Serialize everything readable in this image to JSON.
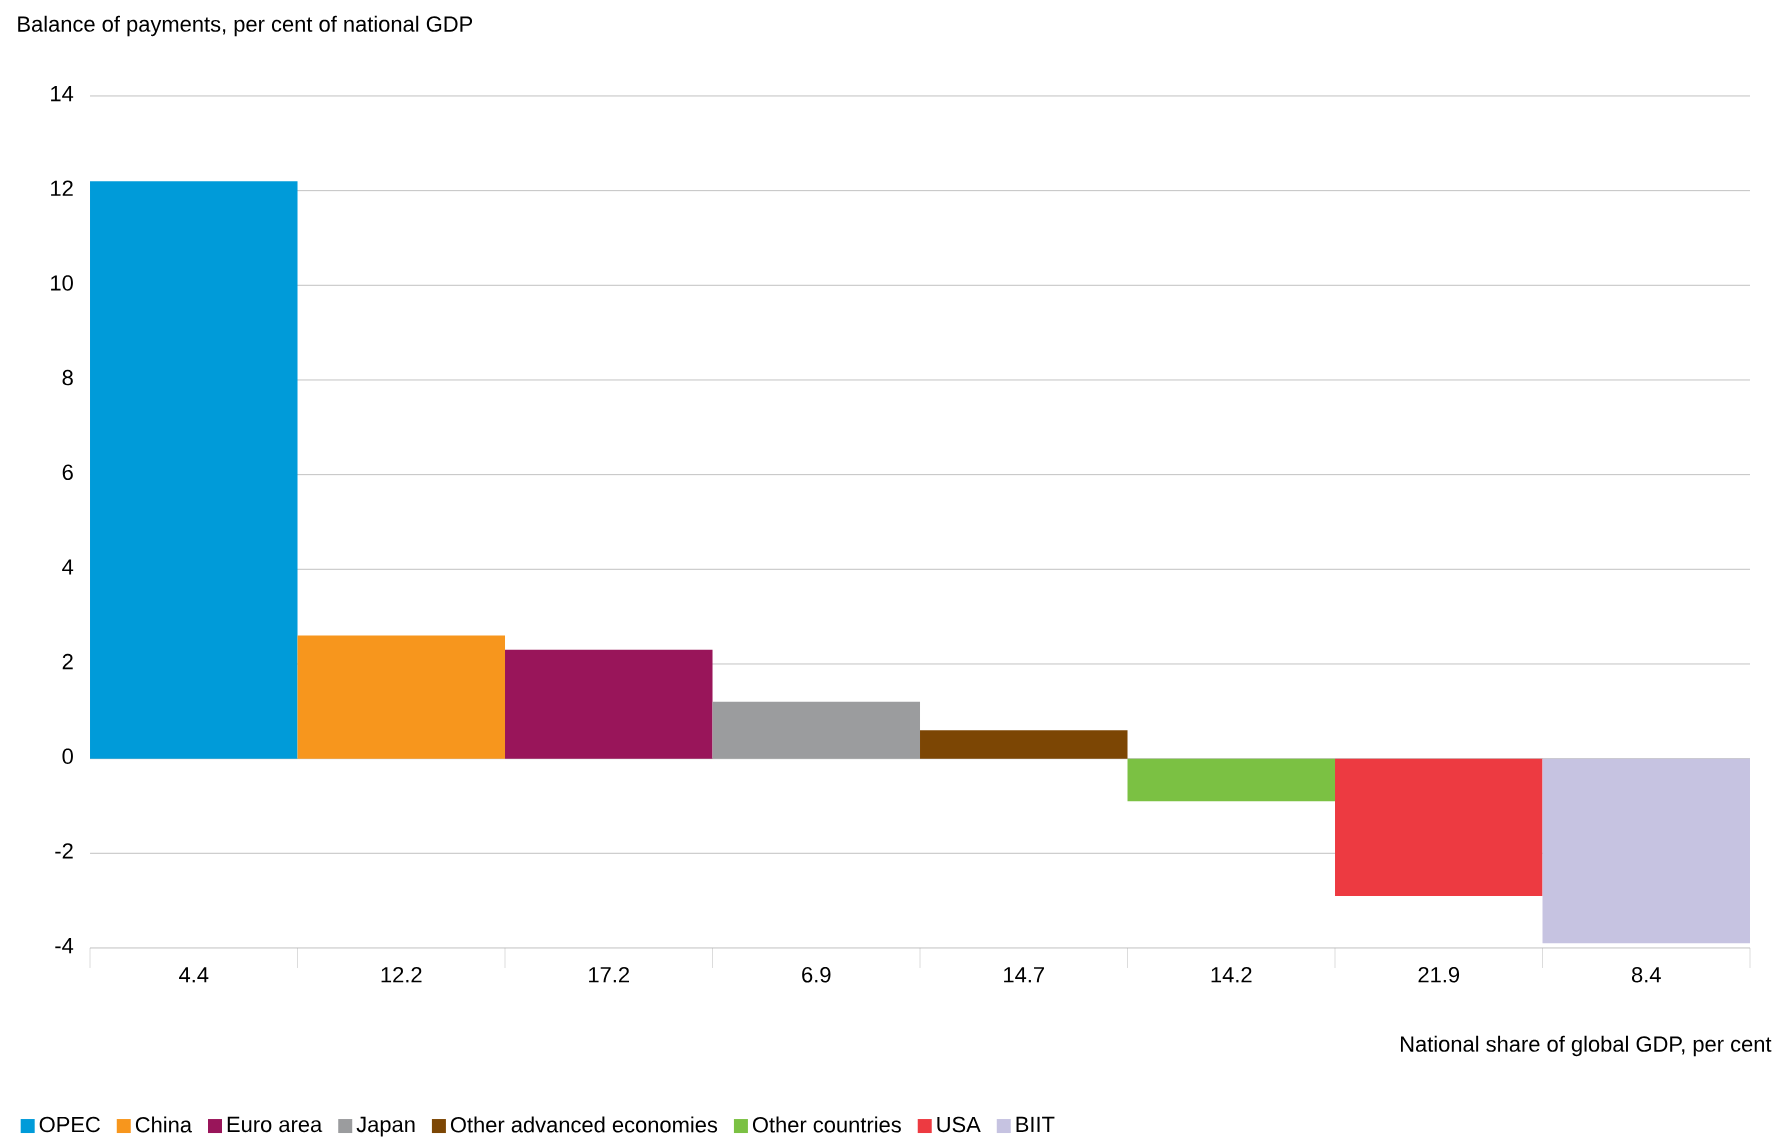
{
  "chart_data": {
    "type": "bar",
    "ylabel": "Balance of payments, per cent of national GDP",
    "xlabel": "National share of global GDP, per cent",
    "categories": [
      "4.4",
      "12.2",
      "17.2",
      "6.9",
      "14.7",
      "14.2",
      "21.9",
      "8.4"
    ],
    "ylim": [
      -4,
      14
    ],
    "yticks": [
      -4,
      -2,
      0,
      2,
      4,
      6,
      8,
      10,
      12,
      14
    ],
    "grid": "y",
    "legend": "bottom",
    "series": [
      {
        "name": "OPEC",
        "color": "#009bd9",
        "values": [
          12.2,
          null,
          null,
          null,
          null,
          null,
          null,
          null
        ]
      },
      {
        "name": "China",
        "color": "#f7961d",
        "values": [
          null,
          2.6,
          null,
          null,
          null,
          null,
          null,
          null
        ]
      },
      {
        "name": "Euro area",
        "color": "#99155a",
        "values": [
          null,
          null,
          2.3,
          null,
          null,
          null,
          null,
          null
        ]
      },
      {
        "name": "Japan",
        "color": "#9b9c9e",
        "values": [
          null,
          null,
          null,
          1.2,
          null,
          null,
          null,
          null
        ]
      },
      {
        "name": "Other advanced economies",
        "color": "#7c4604",
        "values": [
          null,
          null,
          null,
          null,
          0.6,
          null,
          null,
          null
        ]
      },
      {
        "name": "Other countries",
        "color": "#7bc143",
        "values": [
          null,
          null,
          null,
          null,
          null,
          -0.9,
          null,
          null
        ]
      },
      {
        "name": "USA",
        "color": "#ed3a41",
        "values": [
          null,
          null,
          null,
          null,
          null,
          null,
          -2.9,
          null
        ]
      },
      {
        "name": "BIIT",
        "color": "#c6c3e1",
        "values": [
          null,
          null,
          null,
          null,
          null,
          null,
          null,
          -3.9
        ]
      }
    ]
  }
}
